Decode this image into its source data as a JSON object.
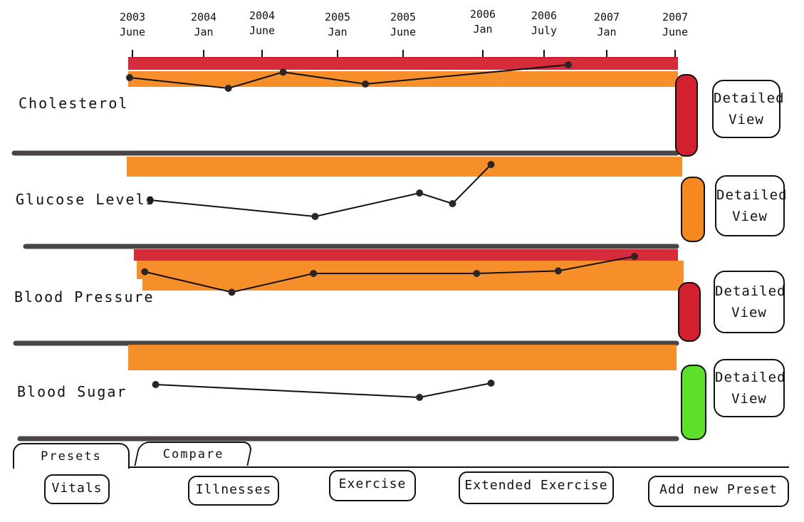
{
  "timeline": {
    "ticks": [
      {
        "year": "2003",
        "month": "June"
      },
      {
        "year": "2004",
        "month": "Jan"
      },
      {
        "year": "2004",
        "month": "June"
      },
      {
        "year": "2005",
        "month": "Jan"
      },
      {
        "year": "2005",
        "month": "June"
      },
      {
        "year": "2006",
        "month": "Jan"
      },
      {
        "year": "2006",
        "month": "July"
      },
      {
        "year": "2007",
        "month": "Jan"
      },
      {
        "year": "2007",
        "month": "June"
      }
    ]
  },
  "rows": [
    {
      "label": "Cholesterol",
      "status_color": "#d3202f",
      "detail_top": "Detailed",
      "detail_bottom": "View",
      "bands": [
        "#d3202f",
        "#f5891f"
      ],
      "points": [
        [
          0.0,
          0.35
        ],
        [
          0.18,
          0.6
        ],
        [
          0.28,
          0.22
        ],
        [
          0.43,
          0.5
        ],
        [
          0.8,
          0.05
        ]
      ]
    },
    {
      "label": "Glucose  Levels",
      "status_color": "#f5891f",
      "detail_top": "Detailed",
      "detail_bottom": "View",
      "bands": [
        "#f5891f"
      ],
      "points": [
        [
          0.04,
          0.55
        ],
        [
          0.34,
          0.78
        ],
        [
          0.53,
          0.45
        ],
        [
          0.59,
          0.6
        ],
        [
          0.66,
          0.05
        ]
      ]
    },
    {
      "label": "Blood  Pressure",
      "status_color": "#d3202f",
      "detail_top": "Detailed",
      "detail_bottom": "View",
      "bands": [
        "#d3202f",
        "#f5891f",
        "#f5891f"
      ],
      "points": [
        [
          0.02,
          0.28
        ],
        [
          0.18,
          0.52
        ],
        [
          0.33,
          0.3
        ],
        [
          0.63,
          0.3
        ],
        [
          0.78,
          0.27
        ],
        [
          0.92,
          0.1
        ]
      ]
    },
    {
      "label": "Blood  Sugar",
      "status_color": "#5ee02a",
      "detail_top": "Detailed",
      "detail_bottom": "View",
      "bands": [
        "#f5891f"
      ],
      "points": [
        [
          0.05,
          0.4
        ],
        [
          0.53,
          0.58
        ],
        [
          0.66,
          0.38
        ]
      ]
    }
  ],
  "tabs": [
    "Presets",
    "Compare"
  ],
  "active_tab": "Presets",
  "presets": [
    "Vitals",
    "Illnesses",
    "Exercise",
    "Extended  Exercise"
  ],
  "add_preset_label": "Add  new  Preset",
  "colors": {
    "red": "#d3202f",
    "orange": "#f5891f",
    "green": "#5ee02a",
    "ink": "#111111",
    "axis": "#4a4546"
  }
}
